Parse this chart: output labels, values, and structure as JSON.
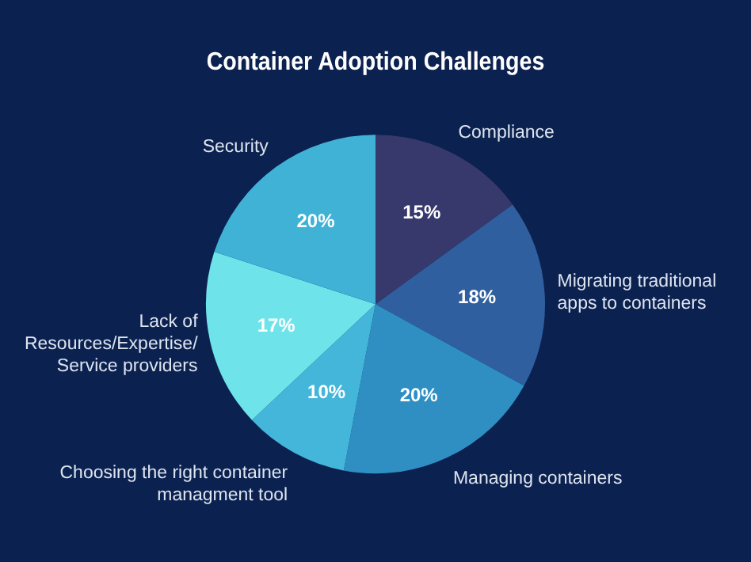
{
  "chart_data": {
    "type": "pie",
    "title": "Container Adoption Challenges",
    "categories": [
      "Compliance",
      "Migrating traditional\napps to containers",
      "Managing containers",
      "Choosing the right container\nmanagment tool",
      "Lack of\nResources/Expertise/\nService providers",
      "Security"
    ],
    "values": [
      15,
      18,
      20,
      10,
      17,
      20
    ],
    "colors": [
      "#37386b",
      "#2f5f9f",
      "#2f8fc3",
      "#43b6da",
      "#6fe3ea",
      "#3fb2d6"
    ],
    "value_labels": [
      "15%",
      "18%",
      "20%",
      "10%",
      "17%",
      "20%"
    ],
    "legend": false
  }
}
